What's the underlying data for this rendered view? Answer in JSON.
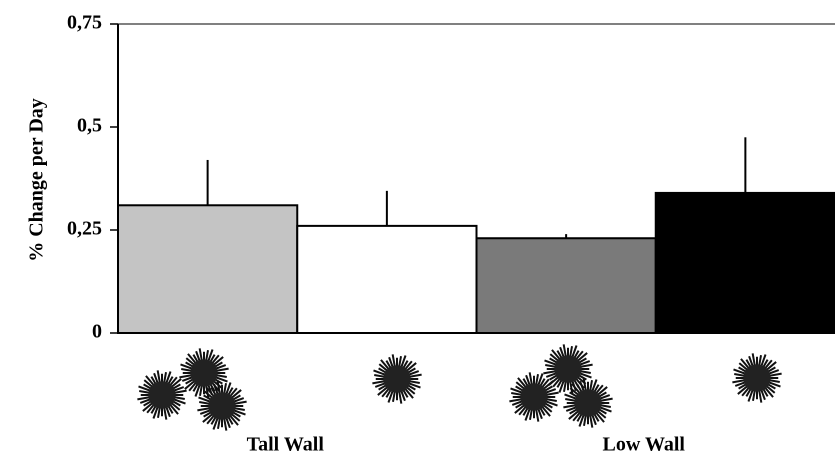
{
  "chart_data": {
    "type": "bar",
    "y_label": "% Change per Day",
    "categories": [
      null,
      null,
      null,
      null
    ],
    "groups": [
      "Tall Wall",
      "Low Wall"
    ],
    "values": [
      0.31,
      0.26,
      0.23,
      0.34
    ],
    "errors": [
      0.11,
      0.085,
      0.01,
      0.135
    ],
    "colors": [
      "#c4c4c4",
      "#ffffff",
      "#7a7a7a",
      "#000000"
    ],
    "ylim": [
      0,
      0.75
    ],
    "yticks": [
      0,
      {
        "value": 0.25,
        "label": "0,25"
      },
      {
        "value": 0.5,
        "label": "0,5"
      },
      {
        "value": 0.75,
        "label": "0,75"
      }
    ]
  }
}
